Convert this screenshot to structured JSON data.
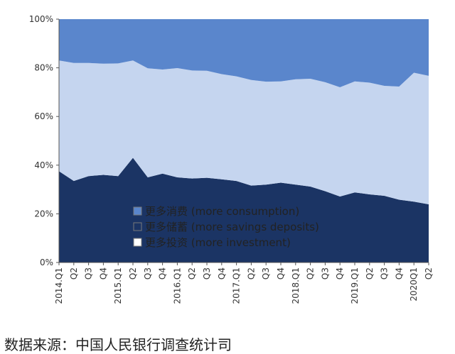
{
  "chart_data": {
    "type": "area",
    "stacked": true,
    "percent": true,
    "x": [
      "2014.Q1",
      "Q2",
      "Q3",
      "Q4",
      "2015.Q1",
      "Q2",
      "Q3",
      "Q4",
      "2016.Q1",
      "Q2",
      "Q3",
      "Q4",
      "2017.Q1",
      "Q2",
      "Q3",
      "Q4",
      "2018.Q1",
      "Q2",
      "Q3",
      "Q4",
      "2019.Q1",
      "Q2",
      "Q3",
      "Q4",
      "2020Q1",
      "Q2"
    ],
    "ylim": [
      0,
      100
    ],
    "yticks": [
      "0%",
      "20%",
      "40%",
      "60%",
      "80%",
      "100%"
    ],
    "series": [
      {
        "name": "更多储蓄 (more savings deposits)",
        "color": "#1b3464",
        "values": [
          37.5,
          33.5,
          35.5,
          36,
          35.5,
          43,
          35,
          36.5,
          35,
          34.5,
          34.8,
          34.2,
          33.5,
          31.6,
          32,
          32.8,
          32,
          31.2,
          29.3,
          27.1,
          28.8,
          28,
          27.4,
          25.8,
          25,
          23.9
        ]
      },
      {
        "name": "更多投资 (more investment)",
        "color": "#c5d5ef",
        "values": [
          45.5,
          48.5,
          46.5,
          45.7,
          46.3,
          40,
          44.8,
          42.8,
          44.9,
          44.4,
          44,
          43.2,
          43,
          43.4,
          42.3,
          41.6,
          43.3,
          44.3,
          44.8,
          44.9,
          45.6,
          45.9,
          45.2,
          46.5,
          53,
          52.8
        ]
      },
      {
        "name": "更多消费 (more consumption)",
        "color": "#5a86cc",
        "values": [
          17,
          18,
          18,
          18.3,
          18.2,
          17,
          20.2,
          20.7,
          20.1,
          21.1,
          21.2,
          22.6,
          23.5,
          25,
          25.7,
          25.6,
          24.7,
          24.5,
          25.9,
          28,
          25.6,
          26.1,
          27.4,
          27.7,
          22,
          23.3
        ]
      }
    ],
    "legend": [
      {
        "label": "更多消费 (more consumption)",
        "color": "#5a86cc"
      },
      {
        "label": "更多储蓄 (more savings deposits)",
        "color": "#1b3464"
      },
      {
        "label": "更多投资 (more investment)",
        "color": "#ffffff"
      }
    ],
    "legend_position": "bottom-right inside plot",
    "grid": false
  },
  "source_text": "数据来源：中国人民银行调查统计司"
}
